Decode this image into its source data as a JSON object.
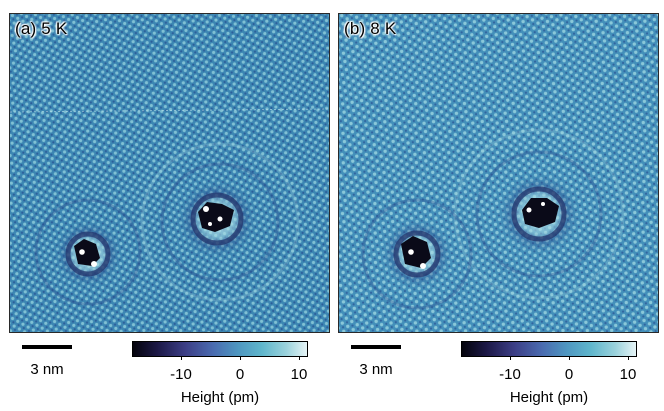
{
  "panels": [
    {
      "label": "(a) 5 K"
    },
    {
      "label": "(b) 8 K"
    }
  ],
  "scale_bar": {
    "label": "3 nm"
  },
  "colorbar": {
    "ticks": [
      "-10",
      "0",
      "10"
    ],
    "title": "Height (pm)",
    "colors": [
      "#04040c",
      "#1c1846",
      "#3c3e86",
      "#4a6bb0",
      "#4e96c0",
      "#5fb6cc",
      "#9ad2dc",
      "#e6f4f6"
    ]
  }
}
